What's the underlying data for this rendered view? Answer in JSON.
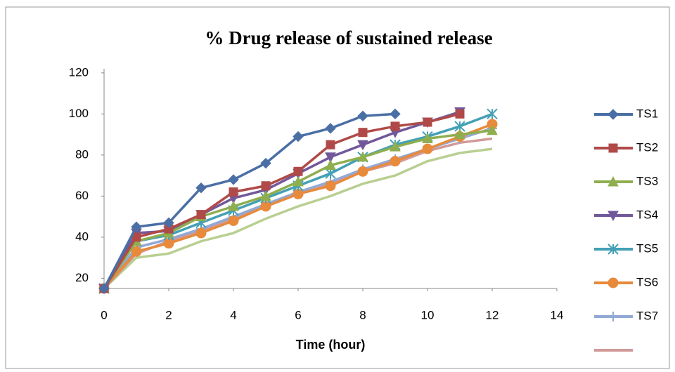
{
  "chart_data": {
    "type": "line",
    "title": "% Drug release of sustained release",
    "x_label": "Time (hour)",
    "x": [
      0,
      1,
      2,
      3,
      4,
      5,
      6,
      7,
      8,
      9,
      10,
      11,
      12
    ],
    "xlim": [
      0,
      14
    ],
    "xticks": [
      0,
      2,
      4,
      6,
      8,
      10,
      12,
      14
    ],
    "ylim": [
      15,
      122
    ],
    "yticks": [
      20,
      40,
      60,
      80,
      100,
      120
    ],
    "grid": false,
    "legend": "right",
    "series": [
      {
        "name": "TS1",
        "color": "#4a6fa5",
        "marker": "diamond",
        "values": [
          15,
          45,
          47,
          64,
          68,
          76,
          89,
          93,
          99,
          100,
          null,
          null,
          null
        ]
      },
      {
        "name": "TS2",
        "color": "#b04a48",
        "marker": "square",
        "values": [
          15,
          40,
          44,
          51,
          62,
          65,
          72,
          85,
          91,
          94,
          96,
          100,
          null
        ]
      },
      {
        "name": "TS3",
        "color": "#8fae4f",
        "marker": "triangle",
        "values": [
          15,
          38,
          42,
          50,
          55,
          60,
          67,
          75,
          79,
          84,
          88,
          90,
          92
        ]
      },
      {
        "name": "TS4",
        "color": "#71589a",
        "marker": "triangle-down",
        "values": [
          15,
          42,
          43,
          51,
          59,
          63,
          71,
          79,
          85,
          91,
          96,
          101,
          null
        ]
      },
      {
        "name": "TS5",
        "color": "#43a0b5",
        "marker": "asterisk",
        "values": [
          15,
          38,
          41,
          47,
          53,
          59,
          65,
          71,
          79,
          85,
          89,
          94,
          100
        ]
      },
      {
        "name": "TS6",
        "color": "#e88a3c",
        "marker": "circle",
        "values": [
          15,
          33,
          37,
          42,
          48,
          55,
          61,
          65,
          72,
          77,
          83,
          89,
          95
        ]
      },
      {
        "name": "TS7",
        "color": "#92a9d6",
        "marker": "plus",
        "values": [
          15,
          35,
          39,
          44,
          50,
          56,
          62,
          67,
          73,
          78,
          83,
          88,
          93
        ]
      },
      {
        "color": "#d09a98",
        "marker": "none",
        "values": [
          15,
          32,
          38,
          43,
          49,
          55,
          61,
          66,
          72,
          76,
          82,
          86,
          88
        ]
      },
      {
        "color": "#b8cf91",
        "marker": "none",
        "values": [
          15,
          30,
          32,
          38,
          42,
          49,
          55,
          60,
          66,
          70,
          77,
          81,
          83
        ]
      }
    ]
  }
}
